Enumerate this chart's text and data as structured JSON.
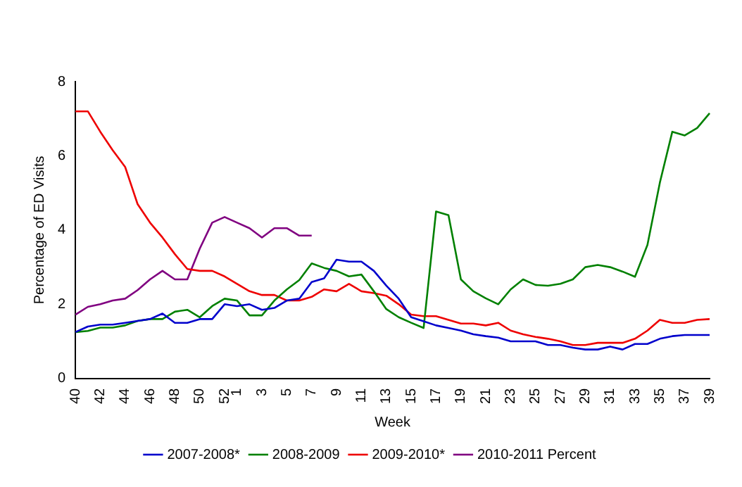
{
  "chart_data": {
    "type": "line",
    "xlabel": "Week",
    "ylabel": "Percentage of ED Visits",
    "categories": [
      "40",
      null,
      "42",
      null,
      "44",
      null,
      "46",
      null,
      "48",
      null,
      "50",
      null,
      "52",
      "1",
      null,
      "3",
      null,
      "5",
      null,
      "7",
      null,
      "9",
      null,
      "11",
      null,
      "13",
      null,
      "15",
      null,
      "17",
      null,
      "19",
      null,
      "21",
      null,
      "23",
      null,
      "25",
      null,
      "27",
      null,
      "29",
      null,
      "31",
      null,
      "33",
      null,
      "35",
      null,
      "37",
      null,
      "39"
    ],
    "ylim": [
      0,
      8
    ],
    "yticks": [
      0,
      2,
      4,
      6,
      8
    ],
    "grid": false,
    "legend": "bottom",
    "marker": "none",
    "series": [
      {
        "name": "2007-2008*",
        "color": "#0000cc",
        "values": [
          1.25,
          1.4,
          1.45,
          1.45,
          1.5,
          1.55,
          1.6,
          1.75,
          1.5,
          1.5,
          1.6,
          1.6,
          2.0,
          1.95,
          2.0,
          1.85,
          1.9,
          2.1,
          2.15,
          2.6,
          2.7,
          3.2,
          3.15,
          3.15,
          2.9,
          2.5,
          2.15,
          1.65,
          1.54,
          1.43,
          1.36,
          1.29,
          1.19,
          1.14,
          1.1,
          1.0,
          1.0,
          1.0,
          0.9,
          0.9,
          0.83,
          0.78,
          0.78,
          0.86,
          0.78,
          0.93,
          0.93,
          1.07,
          1.14,
          1.17,
          1.17,
          1.17
        ]
      },
      {
        "name": "2008-2009",
        "color": "#008000",
        "values": [
          1.25,
          1.28,
          1.37,
          1.37,
          1.43,
          1.55,
          1.6,
          1.6,
          1.8,
          1.85,
          1.65,
          1.95,
          2.15,
          2.1,
          1.7,
          1.7,
          2.1,
          2.4,
          2.65,
          3.1,
          2.98,
          2.9,
          2.75,
          2.8,
          2.35,
          1.87,
          1.65,
          1.5,
          1.36,
          4.5,
          4.4,
          2.67,
          2.35,
          2.16,
          2.0,
          2.4,
          2.67,
          2.52,
          2.5,
          2.55,
          2.67,
          3.0,
          3.06,
          3.0,
          2.88,
          2.74,
          3.6,
          5.28,
          6.65,
          6.55,
          6.75,
          7.15
        ]
      },
      {
        "name": "2009-2010*",
        "color": "#ee0000",
        "values": [
          7.2,
          7.2,
          6.65,
          6.15,
          5.7,
          4.7,
          4.2,
          3.8,
          3.35,
          2.95,
          2.9,
          2.9,
          2.75,
          2.55,
          2.35,
          2.25,
          2.25,
          2.1,
          2.1,
          2.2,
          2.4,
          2.35,
          2.55,
          2.35,
          2.3,
          2.23,
          2.0,
          1.72,
          1.68,
          1.68,
          1.58,
          1.48,
          1.48,
          1.43,
          1.5,
          1.29,
          1.19,
          1.12,
          1.07,
          1.0,
          0.9,
          0.9,
          0.96,
          0.96,
          0.96,
          1.07,
          1.29,
          1.58,
          1.5,
          1.5,
          1.58,
          1.6
        ]
      },
      {
        "name": "2010-2011 Percent",
        "color": "#800080",
        "values": [
          1.72,
          1.93,
          2.0,
          2.1,
          2.15,
          2.38,
          2.67,
          2.9,
          2.67,
          2.67,
          3.5,
          4.2,
          4.35,
          4.2,
          4.05,
          3.8,
          4.05,
          4.05,
          3.85,
          3.85,
          null,
          null,
          null,
          null,
          null,
          null,
          null,
          null,
          null,
          null,
          null,
          null,
          null,
          null,
          null,
          null,
          null,
          null,
          null,
          null,
          null,
          null,
          null,
          null,
          null,
          null,
          null,
          null,
          null,
          null,
          null,
          null
        ]
      }
    ]
  }
}
